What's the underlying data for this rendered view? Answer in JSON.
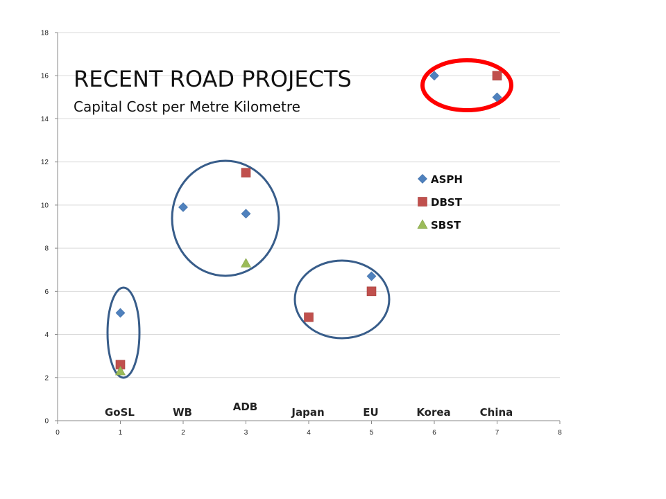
{
  "chart_data": {
    "type": "scatter",
    "title": "RECENT ROAD PROJECTS",
    "subtitle": "Capital Cost per Metre Kilometre",
    "xlim": [
      0,
      8
    ],
    "ylim": [
      0,
      18
    ],
    "x_ticks": [
      0,
      1,
      2,
      3,
      4,
      5,
      6,
      7,
      8
    ],
    "y_ticks": [
      0,
      2,
      4,
      6,
      8,
      10,
      12,
      14,
      16,
      18
    ],
    "grid": "horizontal",
    "legend_position": "right",
    "categories": [
      {
        "label": "GoSL",
        "x": 1
      },
      {
        "label": "WB",
        "x": 2
      },
      {
        "label": "ADB",
        "x": 3
      },
      {
        "label": "Japan",
        "x": 4
      },
      {
        "label": "EU",
        "x": 5
      },
      {
        "label": "Korea",
        "x": 6
      },
      {
        "label": "China",
        "x": 7
      }
    ],
    "series": [
      {
        "name": "ASPH",
        "marker": "diamond",
        "color": "#4f81bd",
        "points": [
          {
            "x": 1,
            "y": 5.0
          },
          {
            "x": 2,
            "y": 9.9
          },
          {
            "x": 3,
            "y": 9.6
          },
          {
            "x": 5,
            "y": 6.7
          },
          {
            "x": 6,
            "y": 16.0
          },
          {
            "x": 7,
            "y": 15.0
          }
        ]
      },
      {
        "name": "DBST",
        "marker": "square",
        "color": "#c0504d",
        "points": [
          {
            "x": 1,
            "y": 2.6
          },
          {
            "x": 3,
            "y": 11.5
          },
          {
            "x": 4,
            "y": 4.8
          },
          {
            "x": 5,
            "y": 6.0
          },
          {
            "x": 7,
            "y": 16.0
          }
        ]
      },
      {
        "name": "SBST",
        "marker": "triangle",
        "color": "#9bbb59",
        "points": [
          {
            "x": 1,
            "y": 2.3
          },
          {
            "x": 3,
            "y": 7.3
          }
        ]
      }
    ],
    "highlight_ellipses": [
      {
        "group": "GoSL",
        "color": "#385d8a"
      },
      {
        "group": "WB-ADB",
        "color": "#385d8a"
      },
      {
        "group": "Japan-EU",
        "color": "#385d8a"
      },
      {
        "group": "Korea-China",
        "color": "#ff0000"
      }
    ]
  }
}
